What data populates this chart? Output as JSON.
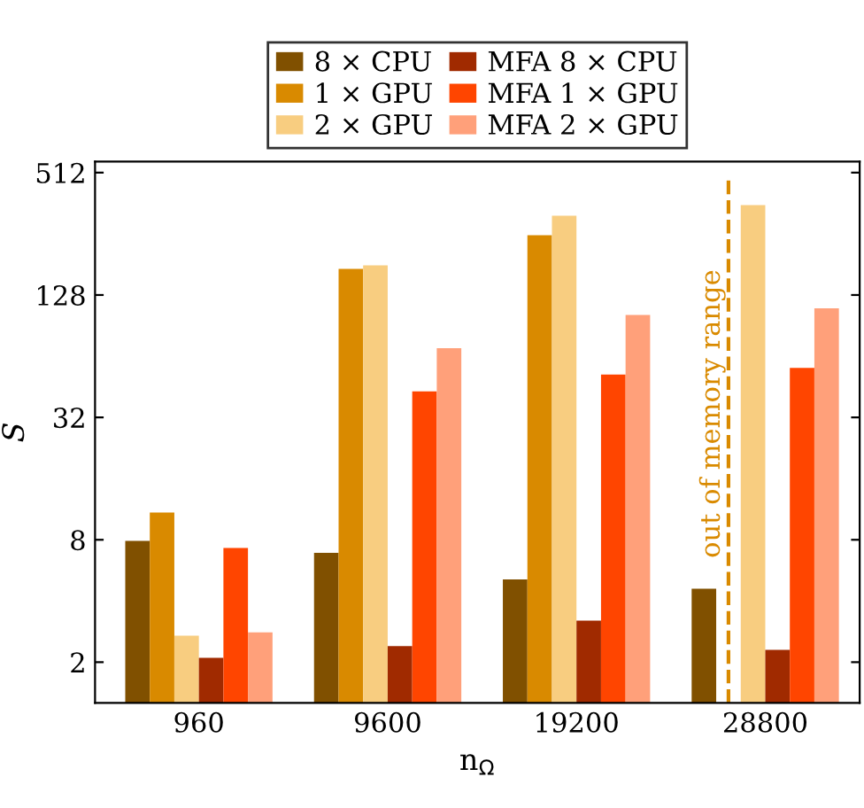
{
  "chart_data": {
    "type": "bar",
    "xlabel": "n$_{Ω}$",
    "ylabel": "S",
    "categories": [
      "960",
      "9600",
      "19200",
      "28800"
    ],
    "series": [
      {
        "name": "8 × CPU",
        "color": "#805000",
        "values": [
          7.9,
          6.9,
          5.1,
          4.6
        ]
      },
      {
        "name": "1 × GPU",
        "color": "#d98a00",
        "values": [
          10.9,
          172,
          252,
          null
        ]
      },
      {
        "name": "2 × GPU",
        "color": "#f8cd80",
        "values": [
          2.7,
          179,
          314,
          354
        ]
      },
      {
        "name": "MFA 8 × CPU",
        "color": "#a02a00",
        "values": [
          2.1,
          2.4,
          3.2,
          2.3
        ]
      },
      {
        "name": "MFA 1 × GPU",
        "color": "#ff4500",
        "values": [
          7.3,
          43,
          52,
          56
        ]
      },
      {
        "name": "MFA 2 × GPU",
        "color": "#ffa07a",
        "values": [
          2.8,
          70,
          102,
          110
        ]
      }
    ],
    "log": "y",
    "ylim": [
      1.26,
      580
    ],
    "yticks": [
      2,
      8,
      32,
      128,
      512
    ],
    "ref_lines": [
      {
        "axis": "x",
        "value": "28800",
        "label": "out of memory range",
        "color": "#d98a00",
        "line_style": "dashed"
      }
    ],
    "legend": "top",
    "grid": false
  }
}
